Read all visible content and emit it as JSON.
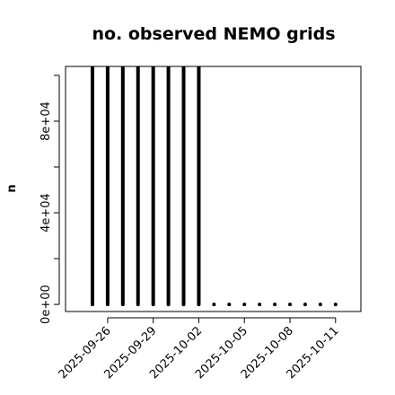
{
  "chart_data": {
    "type": "bar",
    "title": "no. observed NEMO grids",
    "y_label": "n",
    "x": [
      "2025-09-25",
      "2025-09-26",
      "2025-09-27",
      "2025-09-28",
      "2025-09-29",
      "2025-09-30",
      "2025-10-01",
      "2025-10-02",
      "2025-10-03",
      "2025-10-04",
      "2025-10-05",
      "2025-10-06",
      "2025-10-07",
      "2025-10-08",
      "2025-10-09",
      "2025-10-10",
      "2025-10-11"
    ],
    "values": [
      103900,
      103900,
      103900,
      103900,
      103900,
      103900,
      103900,
      103900,
      0,
      0,
      0,
      0,
      0,
      0,
      0,
      0,
      0
    ],
    "color": "#000000",
    "xlim": [
      "2025-09-23T05:30",
      "2025-10-12T16:00"
    ],
    "xticks": [
      "2025-09-26",
      "2025-09-29",
      "2025-10-02",
      "2025-10-05",
      "2025-10-08",
      "2025-10-11"
    ],
    "ylim": [
      -3100,
      103900
    ],
    "yticks": [
      {
        "value": 0,
        "label": "0e+00"
      },
      {
        "value": 40000,
        "label": "4e+04"
      },
      {
        "value": 80000,
        "label": "8e+04"
      }
    ],
    "yticks_unlabeled": [
      20000,
      60000,
      100000
    ]
  }
}
